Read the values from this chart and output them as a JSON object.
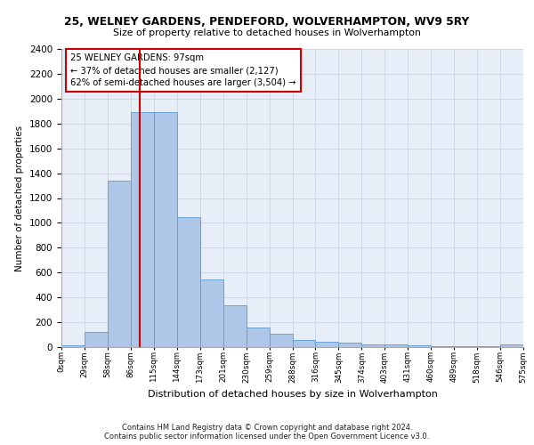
{
  "title1": "25, WELNEY GARDENS, PENDEFORD, WOLVERHAMPTON, WV9 5RY",
  "title2": "Size of property relative to detached houses in Wolverhampton",
  "xlabel": "Distribution of detached houses by size in Wolverhampton",
  "ylabel": "Number of detached properties",
  "bar_values": [
    15,
    125,
    1340,
    1890,
    1890,
    1045,
    545,
    335,
    160,
    110,
    60,
    40,
    35,
    25,
    20,
    15,
    5,
    5,
    5,
    20
  ],
  "bin_labels": [
    "0sqm",
    "29sqm",
    "58sqm",
    "86sqm",
    "115sqm",
    "144sqm",
    "173sqm",
    "201sqm",
    "230sqm",
    "259sqm",
    "288sqm",
    "316sqm",
    "345sqm",
    "374sqm",
    "403sqm",
    "431sqm",
    "460sqm",
    "489sqm",
    "518sqm",
    "546sqm",
    "575sqm"
  ],
  "bar_color": "#aec6e8",
  "bar_edge_color": "#5b9bd5",
  "vline_color": "#cc0000",
  "annotation_text": "25 WELNEY GARDENS: 97sqm\n← 37% of detached houses are smaller (2,127)\n62% of semi-detached houses are larger (3,504) →",
  "annotation_box_color": "#ffffff",
  "annotation_box_edge": "#cc0000",
  "ylim": [
    0,
    2400
  ],
  "yticks": [
    0,
    200,
    400,
    600,
    800,
    1000,
    1200,
    1400,
    1600,
    1800,
    2000,
    2200,
    2400
  ],
  "grid_color": "#d0d8e8",
  "background_color": "#e8eef8",
  "footer1": "Contains HM Land Registry data © Crown copyright and database right 2024.",
  "footer2": "Contains public sector information licensed under the Open Government Licence v3.0."
}
